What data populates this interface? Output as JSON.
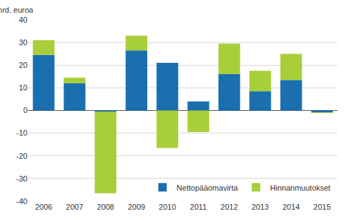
{
  "chart_data": {
    "type": "bar",
    "stacked": true,
    "y_label": "mrd. euroa",
    "categories": [
      "2006",
      "2007",
      "2008",
      "2009",
      "2010",
      "2011",
      "2012",
      "2013",
      "2014",
      "2015"
    ],
    "series": [
      {
        "name": "Nettopääomavirta",
        "color": "#1a6faf",
        "values": [
          24.5,
          12,
          -0.5,
          26.5,
          21,
          4,
          16,
          8.5,
          13.5,
          -0.8
        ]
      },
      {
        "name": "Hinnanmuutokset",
        "color": "#a8cf3a",
        "values": [
          6.5,
          2.5,
          -36,
          6.5,
          -16.5,
          -9.5,
          13.5,
          9,
          11.5,
          -0.3
        ]
      }
    ],
    "ylim": [
      -40,
      40
    ],
    "yticks": [
      -40,
      -30,
      -20,
      -10,
      0,
      10,
      20,
      30,
      40
    ],
    "grid": true,
    "legend": "lower right"
  }
}
